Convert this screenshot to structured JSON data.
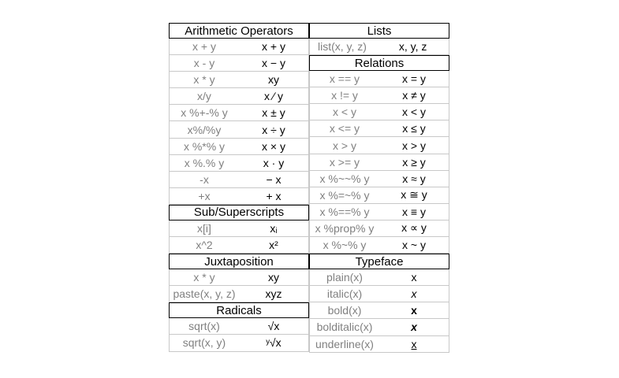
{
  "left": [
    {
      "title": "Arithmetic Operators",
      "rows": [
        {
          "expr": "x + y",
          "render": "x + y"
        },
        {
          "expr": "x - y",
          "render": "x − y"
        },
        {
          "expr": "x * y",
          "render": "xy"
        },
        {
          "expr": "x/y",
          "render": "x ∕ y"
        },
        {
          "expr": "x %+-% y",
          "render": "x ± y"
        },
        {
          "expr": "x%/%y",
          "render": "x ÷ y"
        },
        {
          "expr": "x %*% y",
          "render": "x × y"
        },
        {
          "expr": "x %.% y",
          "render": "x · y"
        },
        {
          "expr": "-x",
          "render": "− x"
        },
        {
          "expr": "+x",
          "render": "+ x"
        }
      ]
    },
    {
      "title": "Sub/Superscripts",
      "rows": [
        {
          "expr": "x[i]",
          "render": "xᵢ"
        },
        {
          "expr": "x^2",
          "render": "x²"
        }
      ]
    },
    {
      "title": "Juxtaposition",
      "rows": [
        {
          "expr": "x * y",
          "render": "xy"
        },
        {
          "expr": "paste(x, y, z)",
          "render": "xyz"
        }
      ]
    },
    {
      "title": "Radicals",
      "rows": [
        {
          "expr": "sqrt(x)",
          "render": "√x"
        },
        {
          "expr": "sqrt(x, y)",
          "render": "ʸ√x"
        }
      ]
    }
  ],
  "right": [
    {
      "title": "Lists",
      "rows": [
        {
          "expr": "list(x, y, z)",
          "render": "x, y, z"
        }
      ]
    },
    {
      "title": "Relations",
      "rows": [
        {
          "expr": "x == y",
          "render": "x = y"
        },
        {
          "expr": "x != y",
          "render": "x ≠ y"
        },
        {
          "expr": "x < y",
          "render": "x < y"
        },
        {
          "expr": "x <= y",
          "render": "x ≤ y"
        },
        {
          "expr": "x > y",
          "render": "x > y"
        },
        {
          "expr": "x >= y",
          "render": "x ≥ y"
        },
        {
          "expr": "x %~~% y",
          "render": "x ≈ y"
        },
        {
          "expr": "x %=~% y",
          "render": "x ≅ y"
        },
        {
          "expr": "x %==% y",
          "render": "x ≡ y"
        },
        {
          "expr": "x %prop% y",
          "render": "x ∝ y"
        },
        {
          "expr": "x %~% y",
          "render": "x ~ y"
        }
      ]
    },
    {
      "title": "Typeface",
      "rows": [
        {
          "expr": "plain(x)",
          "render": "x"
        },
        {
          "expr": "italic(x)",
          "render": "x"
        },
        {
          "expr": "bold(x)",
          "render": "x"
        },
        {
          "expr": "bolditalic(x)",
          "render": "x"
        },
        {
          "expr": "underline(x)",
          "render": "x"
        }
      ]
    }
  ]
}
